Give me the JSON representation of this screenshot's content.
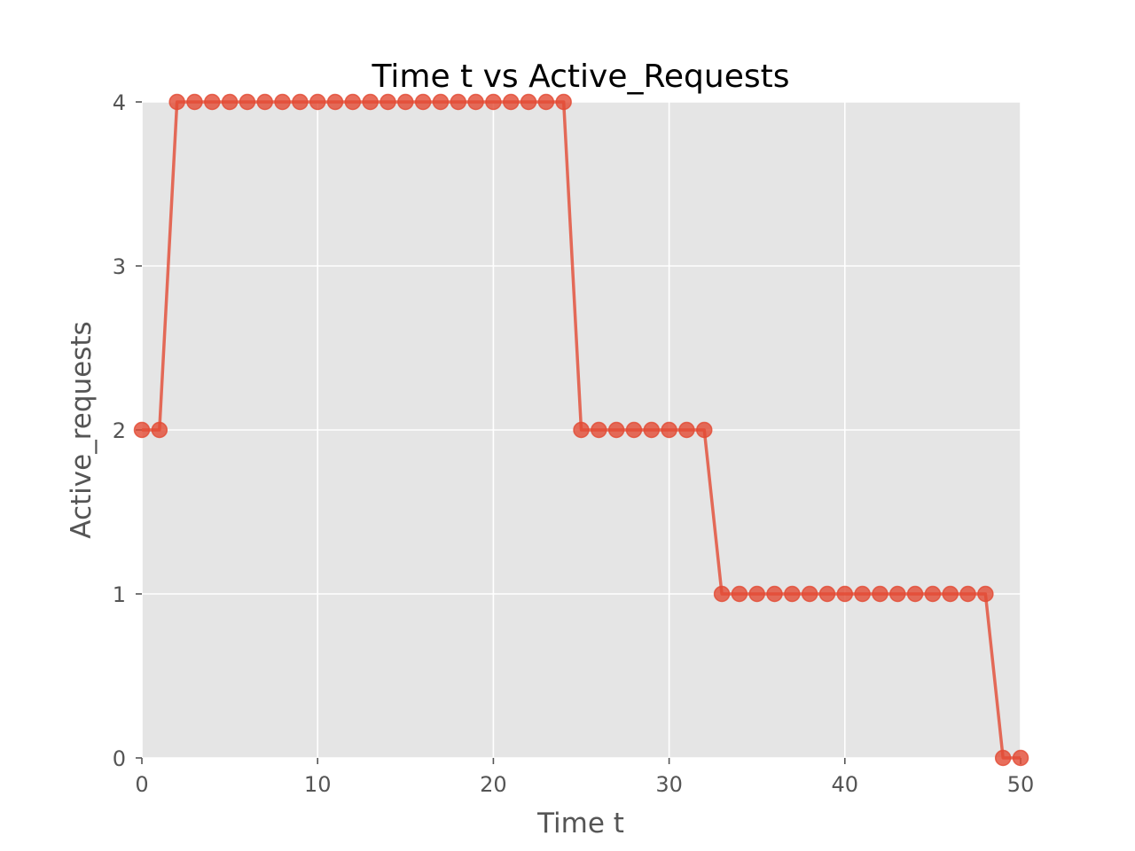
{
  "chart_data": {
    "type": "line",
    "title": "Time t vs Active_Requests",
    "xlabel": "Time t",
    "ylabel": "Active_requests",
    "xlim": [
      0,
      50
    ],
    "ylim": [
      0,
      4
    ],
    "x_ticks": [
      0,
      10,
      20,
      30,
      40,
      50
    ],
    "y_ticks": [
      0,
      1,
      2,
      3,
      4
    ],
    "grid": true,
    "legend": "none",
    "style": {
      "background": "#e5e5e5",
      "line_color": "#e24a33",
      "grid_color": "#ffffff",
      "tick_color": "#555555"
    },
    "series": [
      {
        "x": [
          0,
          1,
          2,
          3,
          4,
          5,
          6,
          7,
          8,
          9,
          10,
          11,
          12,
          13,
          14,
          15,
          16,
          17,
          18,
          19,
          20,
          21,
          22,
          23,
          24,
          25,
          26,
          27,
          28,
          29,
          30,
          31,
          32,
          33,
          34,
          35,
          36,
          37,
          38,
          39,
          40,
          41,
          42,
          43,
          44,
          45,
          46,
          47,
          48,
          49,
          50
        ],
        "y": [
          2,
          2,
          4,
          4,
          4,
          4,
          4,
          4,
          4,
          4,
          4,
          4,
          4,
          4,
          4,
          4,
          4,
          4,
          4,
          4,
          4,
          4,
          4,
          4,
          4,
          2,
          2,
          2,
          2,
          2,
          2,
          2,
          2,
          1,
          1,
          1,
          1,
          1,
          1,
          1,
          1,
          1,
          1,
          1,
          1,
          1,
          1,
          1,
          1,
          0,
          0
        ]
      }
    ]
  }
}
